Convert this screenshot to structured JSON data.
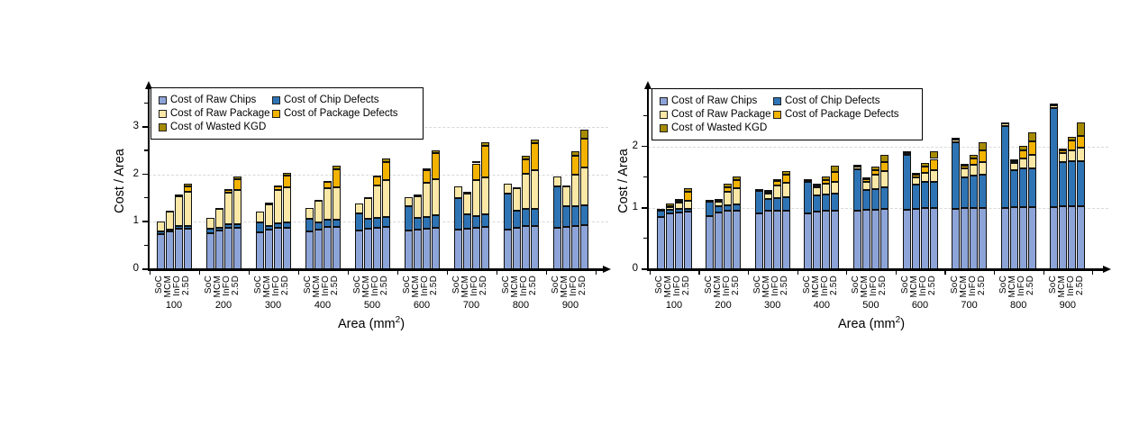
{
  "figure": {
    "background": "#ffffff"
  },
  "segments": [
    {
      "key": "raw_chips",
      "label": "Cost of Raw Chips",
      "color": "#8da4d8"
    },
    {
      "key": "chip_defects",
      "label": "Cost of Chip Defects",
      "color": "#2e74b5"
    },
    {
      "key": "raw_package",
      "label": "Cost of Raw Package",
      "color": "#fce8a6"
    },
    {
      "key": "package_defects",
      "label": "Cost of Package Defects",
      "color": "#f3b300"
    },
    {
      "key": "wasted_kgd",
      "label": "Cost of Wasted KGD",
      "color": "#a68b00"
    }
  ],
  "chart_data": [
    {
      "type": "bar",
      "stacked": true,
      "title": "",
      "ylabel": "Cost / Area",
      "xlabel_prefix": "Area (mm",
      "xlabel_sup": "2",
      "xlabel_suffix": ")",
      "legend_position": "top-left-inside",
      "grid": "horizontal-dashed",
      "y_axis": {
        "max": 3.72,
        "labeled_ticks": [
          0,
          1,
          2,
          3
        ],
        "minor_ticks": [
          0.5,
          1.5,
          2.5,
          3.5
        ],
        "gridlines": [
          1,
          2,
          3
        ]
      },
      "categories": [
        "100",
        "200",
        "300",
        "400",
        "500",
        "600",
        "700",
        "800",
        "900"
      ],
      "bar_labels": [
        "SoC",
        "MCM",
        "InFO",
        "2.5D"
      ],
      "segment_order": [
        "raw_chips",
        "chip_defects",
        "raw_package",
        "package_defects",
        "wasted_kgd"
      ],
      "series": [
        {
          "name": "SoC",
          "values": [
            [
              0.74,
              0.05,
              0.21,
              0,
              0
            ],
            [
              0.76,
              0.1,
              0.22,
              0,
              0
            ],
            [
              0.78,
              0.2,
              0.23,
              0,
              0
            ],
            [
              0.79,
              0.28,
              0.22,
              0,
              0
            ],
            [
              0.81,
              0.37,
              0.2,
              0,
              0
            ],
            [
              0.82,
              0.5,
              0.2,
              0,
              0
            ],
            [
              0.84,
              0.66,
              0.24,
              0,
              0
            ],
            [
              0.84,
              0.75,
              0.21,
              0,
              0
            ],
            [
              0.88,
              0.86,
              0.22,
              0,
              0
            ]
          ]
        },
        {
          "name": "MCM",
          "values": [
            [
              0.8,
              0.04,
              0.38,
              0.01,
              0.01
            ],
            [
              0.81,
              0.07,
              0.4,
              0.01,
              0.01
            ],
            [
              0.83,
              0.09,
              0.46,
              0.01,
              0.01
            ],
            [
              0.84,
              0.14,
              0.47,
              0.01,
              0.01
            ],
            [
              0.85,
              0.22,
              0.43,
              0.01,
              0.01
            ],
            [
              0.84,
              0.24,
              0.47,
              0.01,
              0.01
            ],
            [
              0.86,
              0.29,
              0.46,
              0.01,
              0.01
            ],
            [
              0.87,
              0.36,
              0.48,
              0.01,
              0.01
            ],
            [
              0.9,
              0.42,
              0.43,
              0.01,
              0.01
            ]
          ]
        },
        {
          "name": "InFO",
          "values": [
            [
              0.86,
              0.05,
              0.62,
              0.04,
              0.01
            ],
            [
              0.88,
              0.06,
              0.67,
              0.07,
              0.01
            ],
            [
              0.88,
              0.09,
              0.7,
              0.08,
              0.01
            ],
            [
              0.89,
              0.16,
              0.66,
              0.13,
              0.02
            ],
            [
              0.88,
              0.21,
              0.68,
              0.18,
              0.03
            ],
            [
              0.86,
              0.25,
              0.71,
              0.26,
              0.04
            ],
            [
              0.87,
              0.25,
              0.75,
              0.36,
              0.05
            ],
            [
              0.91,
              0.36,
              0.74,
              0.31,
              0.07
            ],
            [
              0.92,
              0.41,
              0.67,
              0.4,
              0.08
            ]
          ]
        },
        {
          "name": "2.5D",
          "values": [
            [
              0.86,
              0.05,
              0.72,
              0.12,
              0.05
            ],
            [
              0.88,
              0.07,
              0.72,
              0.22,
              0.06
            ],
            [
              0.88,
              0.11,
              0.73,
              0.25,
              0.07
            ],
            [
              0.89,
              0.16,
              0.68,
              0.38,
              0.07
            ],
            [
              0.89,
              0.22,
              0.76,
              0.39,
              0.08
            ],
            [
              0.87,
              0.26,
              0.76,
              0.56,
              0.06
            ],
            [
              0.89,
              0.27,
              0.78,
              0.66,
              0.08
            ],
            [
              0.92,
              0.36,
              0.8,
              0.58,
              0.08
            ],
            [
              0.93,
              0.42,
              0.8,
              0.6,
              0.2
            ]
          ]
        }
      ]
    },
    {
      "type": "bar",
      "stacked": true,
      "title": "",
      "ylabel": "Cost / Area",
      "xlabel_prefix": "Area (mm",
      "xlabel_sup": "2",
      "xlabel_suffix": ")",
      "legend_position": "top-left-inside",
      "grid": "horizontal-dashed",
      "y_axis": {
        "max": 2.88,
        "labeled_ticks": [
          0,
          1,
          2
        ],
        "minor_ticks": [
          0.5,
          1.5,
          2.5
        ],
        "gridlines": [
          1,
          2
        ]
      },
      "categories": [
        "100",
        "200",
        "300",
        "400",
        "500",
        "600",
        "700",
        "800",
        "900"
      ],
      "bar_labels": [
        "SoC",
        "MCM",
        "InFO",
        "2.5D"
      ],
      "segment_order": [
        "raw_chips",
        "chip_defects",
        "raw_package",
        "package_defects",
        "wasted_kgd"
      ],
      "series": [
        {
          "name": "SoC",
          "values": [
            [
              0.85,
              0.1,
              0.02,
              0.01,
              0
            ],
            [
              0.87,
              0.23,
              0.02,
              0.01,
              0
            ],
            [
              0.91,
              0.37,
              0.02,
              0.01,
              0
            ],
            [
              0.91,
              0.51,
              0.03,
              0.02,
              0
            ],
            [
              0.96,
              0.67,
              0.04,
              0.03,
              0
            ],
            [
              0.97,
              0.9,
              0.03,
              0.02,
              0
            ],
            [
              0.99,
              1.08,
              0.04,
              0.03,
              0
            ],
            [
              1.0,
              1.34,
              0.04,
              0.02,
              0
            ],
            [
              1.02,
              1.61,
              0.05,
              0.02,
              0
            ]
          ]
        },
        {
          "name": "MCM",
          "values": [
            [
              0.91,
              0.06,
              0.05,
              0.01,
              0.04
            ],
            [
              0.93,
              0.1,
              0.07,
              0.02,
              0.03
            ],
            [
              0.95,
              0.2,
              0.09,
              0.03,
              0.02
            ],
            [
              0.94,
              0.27,
              0.13,
              0.03,
              0.03
            ],
            [
              0.97,
              0.33,
              0.13,
              0.04,
              0.03
            ],
            [
              0.99,
              0.39,
              0.12,
              0.04,
              0.03
            ],
            [
              1.0,
              0.5,
              0.15,
              0.04,
              0.03
            ],
            [
              1.02,
              0.6,
              0.11,
              0.04,
              0.03
            ],
            [
              1.03,
              0.72,
              0.14,
              0.05,
              0.03
            ]
          ]
        },
        {
          "name": "InFO",
          "values": [
            [
              0.93,
              0.05,
              0.11,
              0.03,
              0.03
            ],
            [
              0.95,
              0.1,
              0.21,
              0.08,
              0.06
            ],
            [
              0.96,
              0.2,
              0.21,
              0.07,
              0.03
            ],
            [
              0.95,
              0.27,
              0.17,
              0.07,
              0.06
            ],
            [
              0.97,
              0.34,
              0.23,
              0.08,
              0.05
            ],
            [
              1.0,
              0.42,
              0.15,
              0.1,
              0.06
            ],
            [
              1.0,
              0.53,
              0.17,
              0.11,
              0.06
            ],
            [
              1.02,
              0.62,
              0.17,
              0.13,
              0.07
            ],
            [
              1.03,
              0.73,
              0.18,
              0.16,
              0.06
            ]
          ]
        },
        {
          "name": "2.5D",
          "values": [
            [
              0.94,
              0.05,
              0.13,
              0.14,
              0.06
            ],
            [
              0.96,
              0.1,
              0.26,
              0.14,
              0.06
            ],
            [
              0.96,
              0.21,
              0.24,
              0.13,
              0.06
            ],
            [
              0.96,
              0.27,
              0.19,
              0.16,
              0.11
            ],
            [
              0.98,
              0.36,
              0.26,
              0.15,
              0.12
            ],
            [
              1.0,
              0.43,
              0.19,
              0.18,
              0.12
            ],
            [
              1.0,
              0.54,
              0.21,
              0.19,
              0.13
            ],
            [
              1.02,
              0.62,
              0.23,
              0.22,
              0.14
            ],
            [
              1.03,
              0.73,
              0.23,
              0.18,
              0.23
            ]
          ]
        }
      ]
    }
  ]
}
